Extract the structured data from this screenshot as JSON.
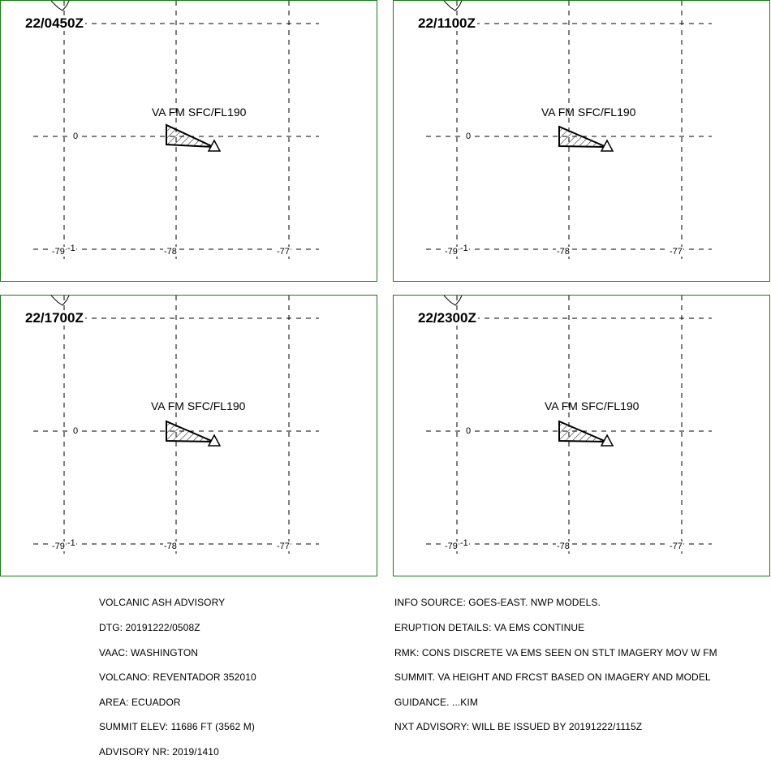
{
  "panels": [
    {
      "time": "22/0450Z",
      "va_label": "VA FM SFC/FL190",
      "lat_label": "0",
      "lon_labels": [
        "-79",
        "-78",
        "-77"
      ],
      "extra_tick": "-1"
    },
    {
      "time": "22/1100Z",
      "va_label": "VA FM SFC/FL190",
      "lat_label": "0",
      "lon_labels": [
        "-79",
        "-78",
        "-77"
      ],
      "extra_tick": "-1"
    },
    {
      "time": "22/1700Z",
      "va_label": "VA FM SFC/FL190",
      "lat_label": "0",
      "lon_labels": [
        "-79",
        "-78",
        "-77"
      ],
      "extra_tick": "-1"
    },
    {
      "time": "22/2300Z",
      "va_label": "VA FM SFC/FL190",
      "lat_label": "0",
      "lon_labels": [
        "-79",
        "-78",
        "-77"
      ],
      "extra_tick": "-1"
    }
  ],
  "advisory_left": [
    "VOLCANIC ASH ADVISORY",
    "DTG: 20191222/0508Z",
    "VAAC: WASHINGTON",
    "VOLCANO: REVENTADOR 352010",
    "AREA: ECUADOR",
    "SUMMIT ELEV: 11686 FT (3562 M)",
    "ADVISORY NR: 2019/1410"
  ],
  "advisory_right": [
    "INFO SOURCE: GOES-EAST. NWP MODELS.",
    "ERUPTION DETAILS: VA EMS CONTINUE",
    "RMK: CONS DISCRETE VA EMS SEEN ON STLT IMAGERY MOV W FM",
    "SUMMIT. VA HEIGHT AND FRCST BASED ON IMAGERY AND MODEL",
    "GUIDANCE. ...KIM",
    "NXT ADVISORY: WILL BE ISSUED BY 20191222/1115Z"
  ],
  "colors": {
    "panel_border": "#1a7a1a",
    "ink": "#000000"
  },
  "icons": {
    "volcano": "volcano-triangle-icon"
  }
}
